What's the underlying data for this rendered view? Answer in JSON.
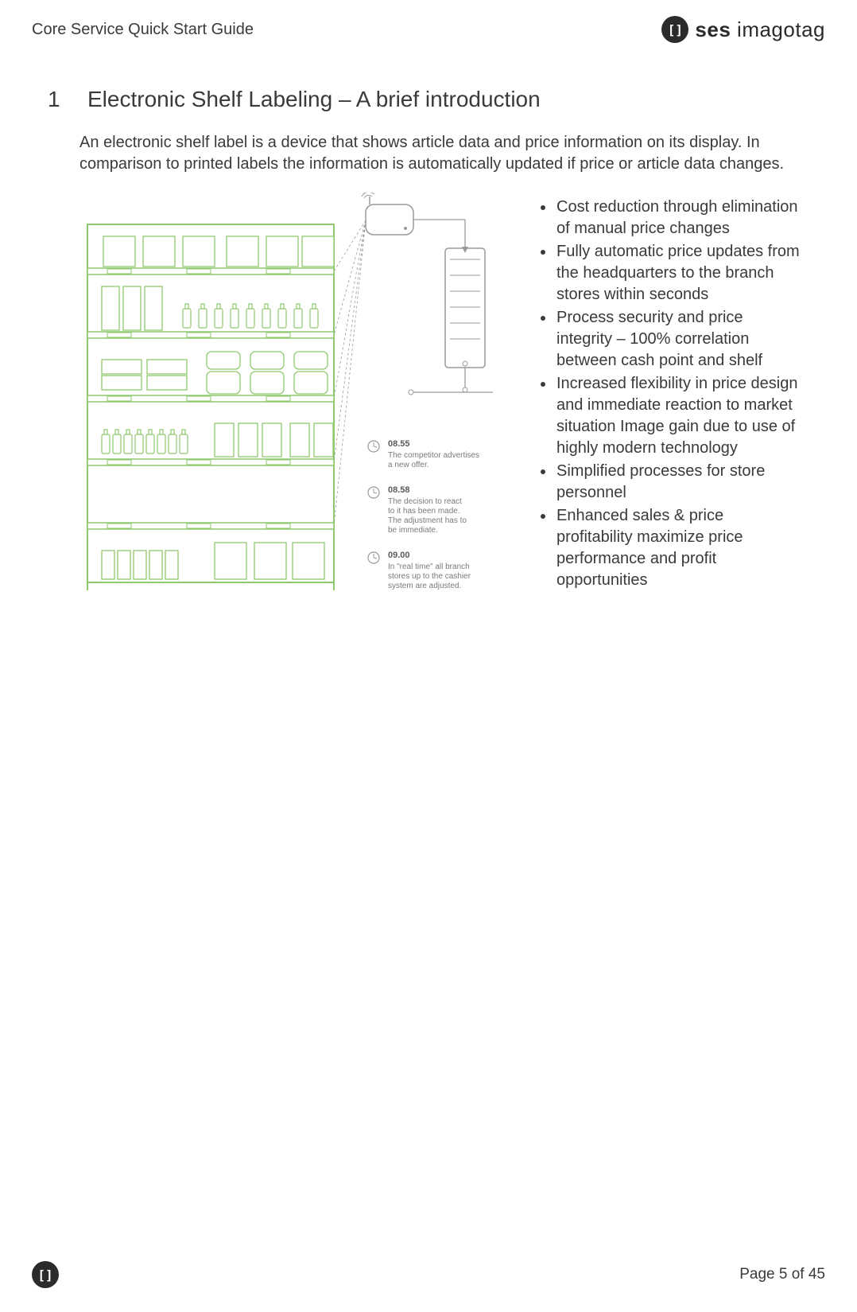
{
  "header": {
    "doc_title": "Core Service Quick Start Guide",
    "logo_bold": "ses",
    "logo_light": " imagotag",
    "logo_glyph": "[]"
  },
  "section": {
    "number": "1",
    "title": "Electronic Shelf Labeling – A brief introduction"
  },
  "intro": "An electronic shelf label is a device that shows article data and price information on its display. In comparison to printed labels the information is automatically updated if price or article data changes.",
  "benefits": [
    "Cost reduction through elimination of manual price changes",
    "Fully automatic price updates from the headquarters to the branch stores within seconds",
    "Process security and price integrity – 100% correlation between cash point and shelf",
    "Increased flexibility in price design and immediate reaction to market situation Image gain due to use of highly modern technology",
    "Simplified processes for store personnel",
    "Enhanced sales & price profitability maximize price performance and profit opportunities"
  ],
  "diagram": {
    "shelf_color": "#8fc96e",
    "line_color": "#9a9a9a",
    "server_color": "#cfcfcf",
    "timeline": [
      {
        "time": "08.55",
        "text": [
          "The competitor advertises",
          "a new offer."
        ]
      },
      {
        "time": "08.58",
        "text": [
          "The decision to react",
          "to it has been made.",
          "The adjustment has to",
          "be immediate."
        ]
      },
      {
        "time": "09.00",
        "text": [
          "In \"real time\" all branch",
          "stores up to the cashier",
          "system are adjusted."
        ]
      }
    ]
  },
  "footer": {
    "page": "Page 5 of 45",
    "glyph": "[]"
  }
}
